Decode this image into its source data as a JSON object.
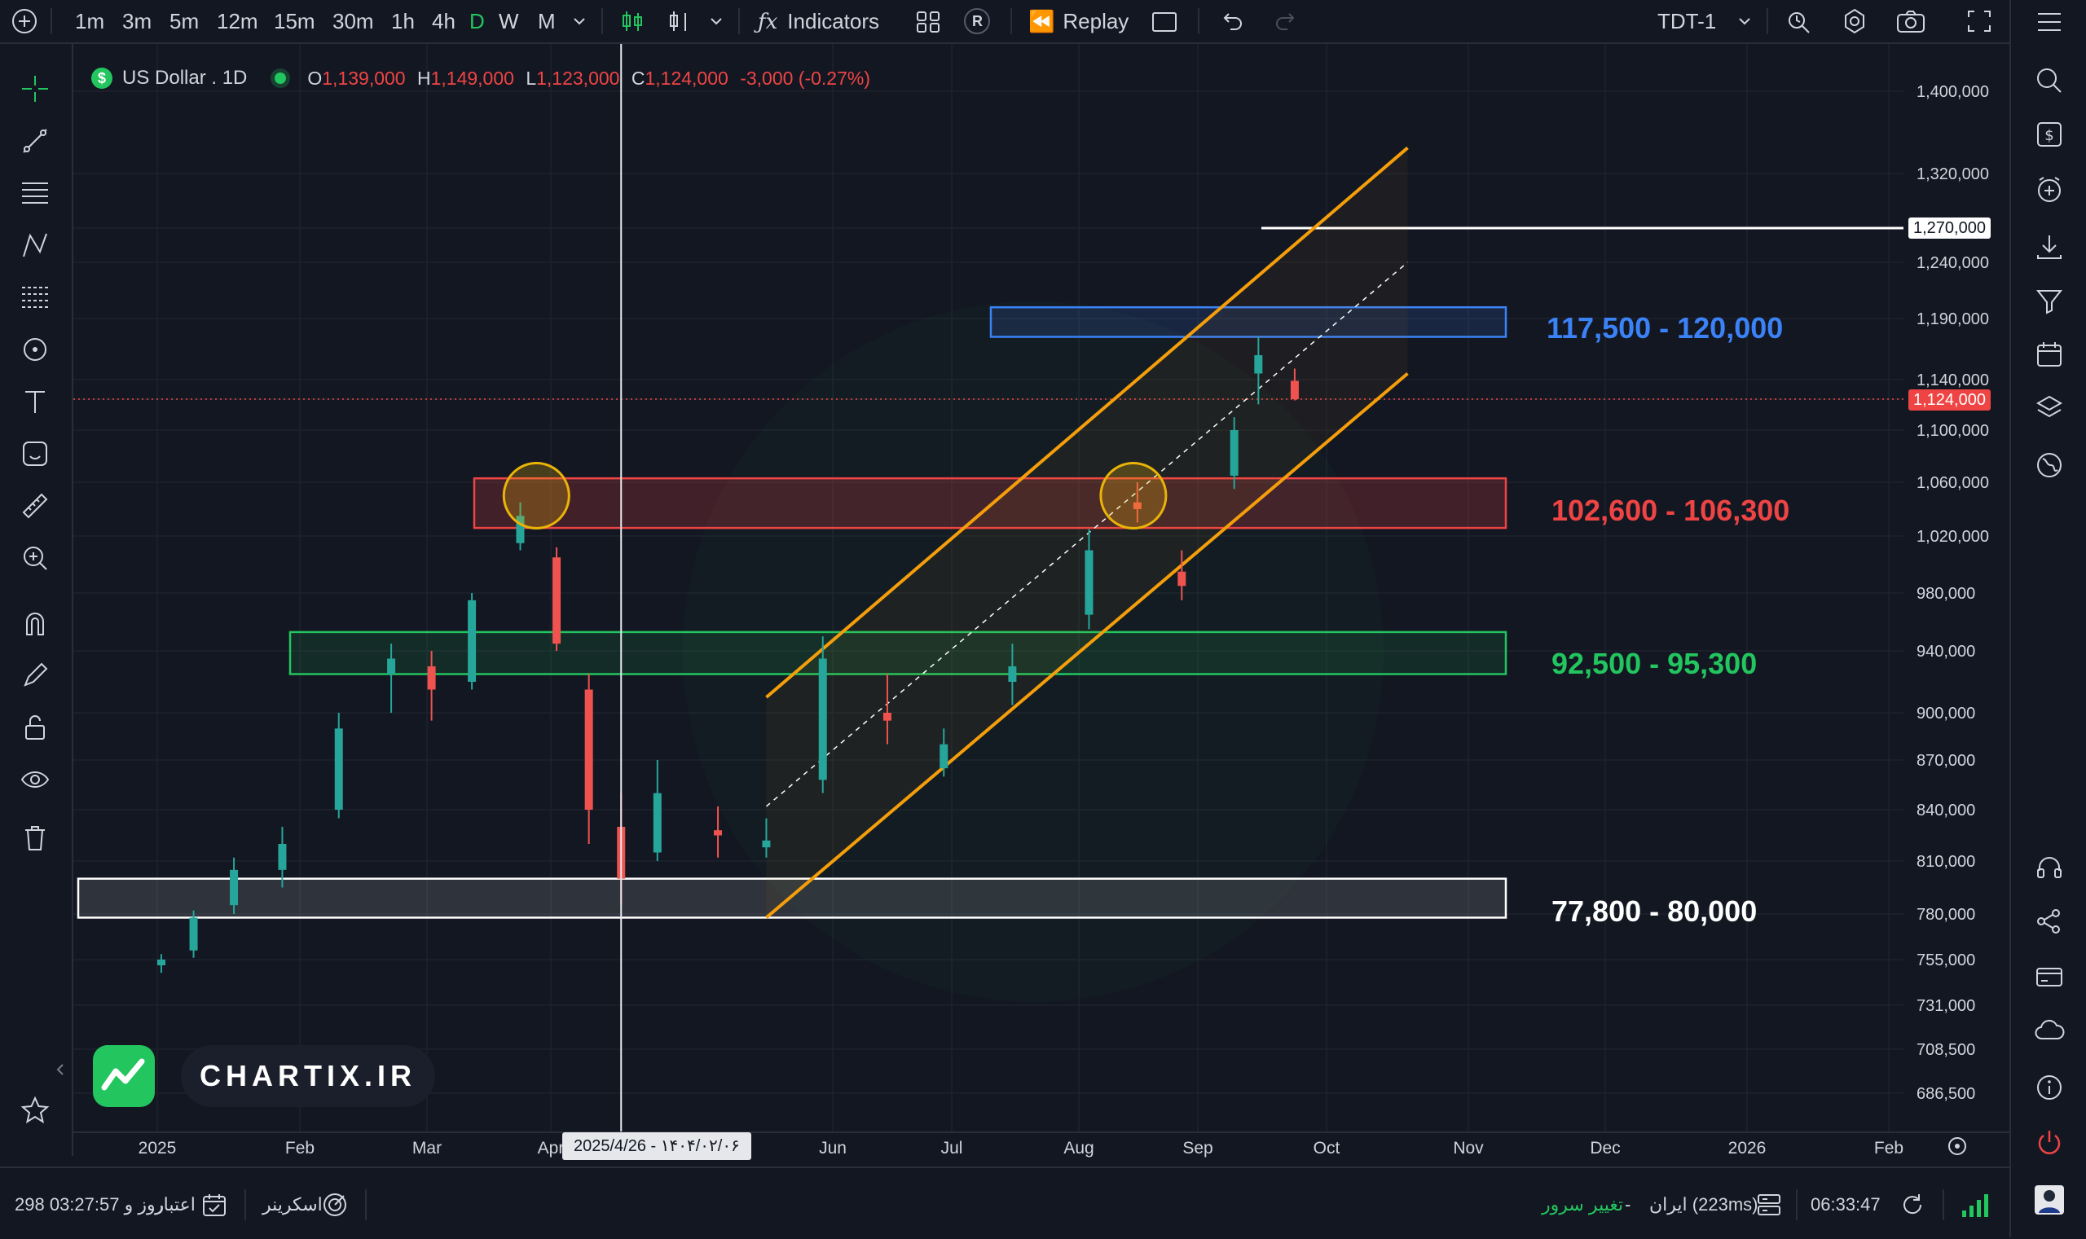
{
  "toolbar": {
    "intervals": [
      "1m",
      "3m",
      "5m",
      "12m",
      "15m",
      "30m",
      "1h",
      "4h",
      "D",
      "W",
      "M"
    ],
    "active_interval": "D",
    "indicators_label": "Indicators",
    "replay_label": "Replay",
    "layout_name": "TDT-1",
    "r_badge": "R"
  },
  "legend": {
    "symbol": "US Dollar . 1D",
    "open_label": "O",
    "open": "1,139,000",
    "high_label": "H",
    "high": "1,149,000",
    "low_label": "L",
    "low": "1,123,000",
    "close_label": "C",
    "close": "1,124,000",
    "change": "-3,000 (-0.27%)"
  },
  "price_axis": [
    "1,400,000",
    "1,320,000",
    "1,270,000",
    "1,240,000",
    "1,190,000",
    "1,140,000",
    "1,124,000",
    "1,100,000",
    "1,060,000",
    "1,020,000",
    "980,000",
    "940,000",
    "900,000",
    "870,000",
    "840,000",
    "810,000",
    "780,000",
    "755,000",
    "731,000",
    "708,500",
    "686,500"
  ],
  "current_price": "1,124,000",
  "level_price": "1,270,000",
  "time_axis": [
    "2025",
    "Feb",
    "Mar",
    "Apr",
    "Jun",
    "Jul",
    "Aug",
    "Sep",
    "Oct",
    "Nov",
    "Dec",
    "2026",
    "Feb"
  ],
  "crosshair_date": "2025/4/26 - ۱۴۰۴/۰۲/۰۶",
  "zones": [
    {
      "label": "117,500 - 120,000",
      "color": "#3b82f6"
    },
    {
      "label": "102,600 - 106,300",
      "color": "#ef4444"
    },
    {
      "label": "92,500 - 95,300",
      "color": "#22c55e"
    },
    {
      "label": "77,800 - 80,000",
      "color": "#ffffff"
    }
  ],
  "watermark": {
    "text": "CHARTIX.IR"
  },
  "statusbar": {
    "credit": "298 روز و 03:27:57",
    "credit_label": "اعتبار",
    "screener_label": "اسکرینر",
    "server_change": "تغییر سرور",
    "dash": "-",
    "server": "ایران (223ms)",
    "time": "06:33:47"
  },
  "colors": {
    "bull": "#26a69a",
    "bear": "#ef5350",
    "channel": "#f59e0b",
    "accent": "#22c55e"
  },
  "chart_data": {
    "type": "candlestick",
    "symbol": "US Dollar",
    "interval": "1D",
    "ohlc": [
      [
        "2025-01-02",
        752000,
        758000,
        748000,
        755000
      ],
      [
        "2025-01-10",
        760000,
        782000,
        756000,
        778000
      ],
      [
        "2025-01-20",
        785000,
        812000,
        780000,
        805000
      ],
      [
        "2025-02-01",
        805000,
        830000,
        795000,
        820000
      ],
      [
        "2025-02-15",
        840000,
        900000,
        835000,
        890000
      ],
      [
        "2025-02-28",
        925000,
        945000,
        900000,
        935000
      ],
      [
        "2025-03-10",
        930000,
        940000,
        895000,
        915000
      ],
      [
        "2025-03-20",
        920000,
        980000,
        915000,
        975000
      ],
      [
        "2025-04-01",
        1015000,
        1045000,
        1010000,
        1035000
      ],
      [
        "2025-04-10",
        1005000,
        1012000,
        940000,
        945000
      ],
      [
        "2025-04-18",
        915000,
        925000,
        820000,
        840000
      ],
      [
        "2025-04-26",
        830000,
        850000,
        785000,
        800000
      ],
      [
        "2025-05-05",
        815000,
        870000,
        810000,
        850000
      ],
      [
        "2025-05-20",
        828000,
        842000,
        812000,
        825000
      ],
      [
        "2025-06-01",
        818000,
        835000,
        812000,
        822000
      ],
      [
        "2025-06-15",
        858000,
        950000,
        850000,
        935000
      ],
      [
        "2025-07-01",
        900000,
        925000,
        880000,
        895000
      ],
      [
        "2025-07-15",
        865000,
        890000,
        860000,
        880000
      ],
      [
        "2025-08-01",
        920000,
        945000,
        905000,
        930000
      ],
      [
        "2025-08-20",
        965000,
        1025000,
        955000,
        1010000
      ],
      [
        "2025-09-01",
        1045000,
        1060000,
        1030000,
        1040000
      ],
      [
        "2025-09-12",
        995000,
        1010000,
        975000,
        985000
      ],
      [
        "2025-09-25",
        1065000,
        1110000,
        1055000,
        1100000
      ],
      [
        "2025-10-01",
        1145000,
        1175000,
        1120000,
        1160000
      ],
      [
        "2025-10-10",
        1139000,
        1149000,
        1123000,
        1124000
      ]
    ],
    "channel": {
      "upper": [
        [
          "2025-06-01",
          910000
        ],
        [
          "2025-11-07",
          1345000
        ]
      ],
      "lower": [
        [
          "2025-06-01",
          778000
        ],
        [
          "2025-11-07",
          1145000
        ]
      ],
      "mid": [
        [
          "2025-06-01",
          842000
        ],
        [
          "2025-11-07",
          1240000
        ]
      ]
    },
    "horizontal_line": 1270000,
    "zones": [
      [
        1175000,
        1200000
      ],
      [
        1026000,
        1063000
      ],
      [
        925000,
        953000
      ],
      [
        778000,
        800000
      ]
    ],
    "highlight_circles": [
      [
        "2025-04-05",
        1050000
      ],
      [
        "2025-08-31",
        1050000
      ]
    ]
  }
}
